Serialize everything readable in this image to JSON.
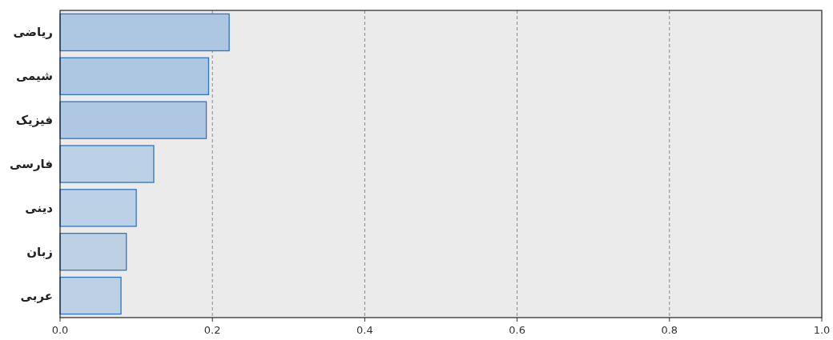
{
  "chart_data": {
    "type": "bar",
    "orientation": "horizontal",
    "categories": [
      "ریاضی",
      "شیمی",
      "فیزیک",
      "فارسی",
      "دینی",
      "زبان",
      "عربی"
    ],
    "values": [
      0.222,
      0.195,
      0.192,
      0.123,
      0.1,
      0.087,
      0.08
    ],
    "colors": [
      "#adc6e2",
      "#adc6e2",
      "#afc7e2",
      "#bcd0e6",
      "#bcd0e6",
      "#bdd0e4",
      "#bdd0e4"
    ],
    "xlim": [
      0,
      1
    ],
    "xticks": [
      {
        "value": 0,
        "label": "0.0"
      },
      0.2,
      0.4,
      0.6,
      0.8,
      {
        "value": 1,
        "label": "1.0"
      }
    ],
    "grid": "x"
  }
}
